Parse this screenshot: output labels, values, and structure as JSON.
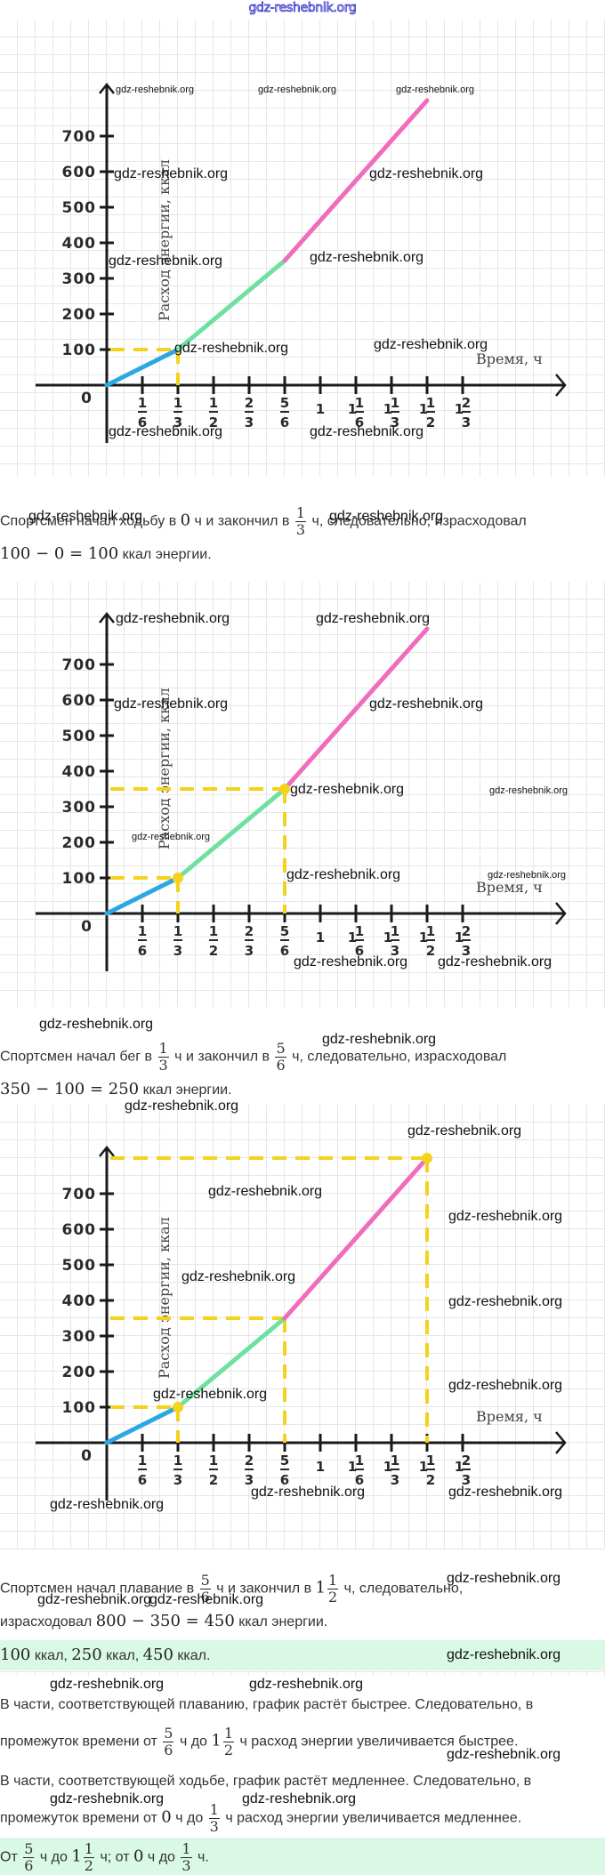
{
  "site": {
    "header_watermark": "gdz-reshebnik.org"
  },
  "watermark": "gdz-reshebnik.org",
  "colors": {
    "walking": "#2ba8e2",
    "running": "#6ee0a0",
    "swimming": "#f06cbd",
    "guide": "#f5d21c",
    "axis": "#1a1a1a"
  },
  "chart_data": [
    {
      "type": "line",
      "title": "",
      "xlabel": "Время, ч",
      "ylabel": "Расход  энергии, ккал",
      "origin_label": "0",
      "x_ticks": [
        {
          "value": 0.1667,
          "whole": "",
          "num": "1",
          "den": "6"
        },
        {
          "value": 0.3333,
          "whole": "",
          "num": "1",
          "den": "3"
        },
        {
          "value": 0.5,
          "whole": "",
          "num": "1",
          "den": "2"
        },
        {
          "value": 0.6667,
          "whole": "",
          "num": "2",
          "den": "3"
        },
        {
          "value": 0.8333,
          "whole": "",
          "num": "5",
          "den": "6"
        },
        {
          "value": 1.0,
          "whole": "1",
          "num": "",
          "den": ""
        },
        {
          "value": 1.1667,
          "whole": "1",
          "num": "1",
          "den": "6"
        },
        {
          "value": 1.3333,
          "whole": "1",
          "num": "1",
          "den": "3"
        },
        {
          "value": 1.5,
          "whole": "1",
          "num": "1",
          "den": "2"
        },
        {
          "value": 1.6667,
          "whole": "1",
          "num": "2",
          "den": "3"
        }
      ],
      "y_ticks": [
        100,
        200,
        300,
        400,
        500,
        600,
        700
      ],
      "xlim": [
        0,
        1.9
      ],
      "ylim": [
        0,
        830
      ],
      "grid": true,
      "series": [
        {
          "name": "Ходьба",
          "x": [
            0,
            0.3333
          ],
          "y": [
            0,
            100
          ],
          "color_key": "walking"
        },
        {
          "name": "Бег",
          "x": [
            0.3333,
            0.8333
          ],
          "y": [
            100,
            350
          ],
          "color_key": "running"
        },
        {
          "name": "Плавание",
          "x": [
            0.8333,
            1.5
          ],
          "y": [
            350,
            800
          ],
          "color_key": "swimming"
        }
      ],
      "highlight_points": [
        {
          "x": 0.3333,
          "y": 100,
          "marker": false
        }
      ]
    },
    {
      "type": "line",
      "xlabel": "Время, ч",
      "ylabel": "Расход  энергии, ккал",
      "highlight_points": [
        {
          "x": 0.3333,
          "y": 100,
          "marker": true
        },
        {
          "x": 0.8333,
          "y": 350,
          "marker": true
        }
      ]
    },
    {
      "type": "line",
      "xlabel": "Время, ч",
      "ylabel": "Расход  энергии, ккал",
      "highlight_points": [
        {
          "x": 0.3333,
          "y": 100,
          "marker": true
        },
        {
          "x": 0.8333,
          "y": 350,
          "marker": false
        },
        {
          "x": 1.5,
          "y": 800,
          "marker": true
        }
      ]
    }
  ],
  "text": {
    "walk": {
      "p1_a": "Спортсмен начал ходьбу в",
      "p1_m1": "0",
      "p1_b": "ч и закончил в",
      "p1_f_num": "1",
      "p1_f_den": "3",
      "p1_c": "ч, следовательно, израсходовал",
      "p2_math": "100 − 0 = 100",
      "p2_b": "ккал энергии."
    },
    "run": {
      "p1_a": "Спортсмен начал бег в",
      "f1_num": "1",
      "f1_den": "3",
      "p1_b": "ч и закончил в",
      "f2_num": "5",
      "f2_den": "6",
      "p1_c": "ч, следовательно, израсходовал",
      "p2_math": "350 − 100 = 250",
      "p2_b": "ккал энергии."
    },
    "swim": {
      "p1_a": "Спортсмен начал плавание в",
      "f1_num": "5",
      "f1_den": "6",
      "p1_b": "ч и закончил в",
      "m_whole": "1",
      "f2_num": "1",
      "f2_den": "2",
      "p1_c": "ч, следовательно,",
      "p2_a": "израсходовал",
      "p2_math": "800 − 350 = 450",
      "p2_b": "ккал энергии."
    },
    "answer1": {
      "m1": "100",
      "t1": "ккал,",
      "m2": "250",
      "t2": "ккал,",
      "m3": "450",
      "t3": "ккал."
    },
    "fast": {
      "line1": "В части, соответствующей плаванию, график растёт быстрее. Следовательно, в",
      "l2_a": "промежуток времени от",
      "f1_num": "5",
      "f1_den": "6",
      "l2_b": "ч до",
      "m_whole": "1",
      "f2_num": "1",
      "f2_den": "2",
      "l2_c": "ч расход энергии увеличивается быстрее."
    },
    "slow": {
      "line1": "В части, соответствующей ходьбе, график растёт медленнее. Следовательно, в",
      "l2_a": "промежуток времени от",
      "m0": "0",
      "l2_b": "ч до",
      "f_num": "1",
      "f_den": "3",
      "l2_c": "ч расход энергии увеличивается медленнее."
    },
    "answer2": {
      "a": "От",
      "f1_num": "5",
      "f1_den": "6",
      "b": "ч до",
      "m_whole": "1",
      "f2_num": "1",
      "f2_den": "2",
      "c": "ч; от",
      "m0": "0",
      "d": "ч до",
      "f3_num": "1",
      "f3_den": "3",
      "e": "ч."
    }
  }
}
